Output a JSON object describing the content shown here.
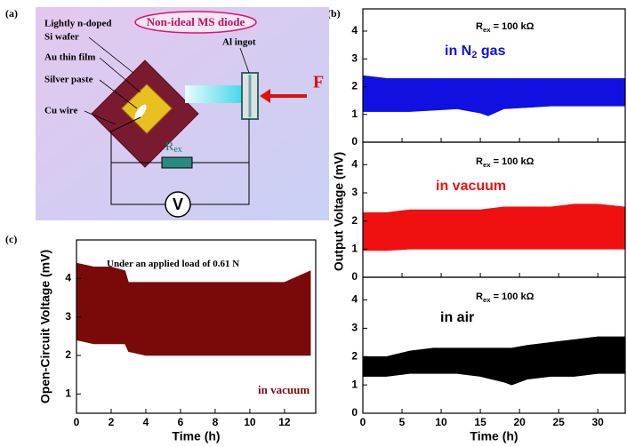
{
  "panel_labels": [
    "(a)",
    "(b)",
    "(c)"
  ],
  "diagram": {
    "title": "Non-ideal MS diode",
    "labels": [
      "Lightly n-doped",
      "Si wafer",
      "Au thin film",
      "Silver paste",
      "Cu wire",
      "Al ingot"
    ],
    "force": "F",
    "resistor": [
      "R",
      "ex"
    ],
    "meter": "V"
  },
  "chart_data": [
    {
      "type": "band",
      "xlim": [
        0,
        33.5
      ],
      "xticks": [
        0,
        5,
        10,
        15,
        20,
        25,
        30
      ],
      "xtick_labels": false,
      "ylim": [
        0,
        4.8
      ],
      "yticks": [
        0,
        1,
        2,
        3,
        4
      ],
      "note": [
        "R",
        "ex",
        " = 100 kΩ"
      ],
      "label": [
        "in N",
        "2",
        " gas"
      ],
      "series": [
        {
          "color": "#1010e0",
          "x": [
            0,
            3,
            6,
            9,
            12,
            15,
            16,
            18,
            21,
            24,
            27,
            30,
            33.5
          ],
          "low": [
            1.1,
            1.1,
            1.1,
            1.15,
            1.2,
            1.05,
            0.95,
            1.2,
            1.25,
            1.3,
            1.3,
            1.3,
            1.3
          ],
          "high": [
            2.4,
            2.3,
            2.3,
            2.3,
            2.3,
            2.3,
            2.3,
            2.3,
            2.3,
            2.3,
            2.3,
            2.3,
            2.3
          ]
        }
      ]
    },
    {
      "type": "band",
      "xlim": [
        0,
        33.5
      ],
      "xticks": [
        0,
        5,
        10,
        15,
        20,
        25,
        30
      ],
      "xtick_labels": false,
      "ylim": [
        0,
        4.8
      ],
      "yticks": [
        0,
        1,
        2,
        3,
        4
      ],
      "ylabel": "Output Voltage (mV)",
      "note": [
        "R",
        "ex",
        " = 100 kΩ"
      ],
      "label": [
        "in vacuum"
      ],
      "series": [
        {
          "color": "#f01010",
          "x": [
            0,
            3,
            6,
            9,
            12,
            15,
            18,
            21,
            24,
            27,
            30,
            33.5
          ],
          "low": [
            0.95,
            0.95,
            1.0,
            1.0,
            1.0,
            1.0,
            1.0,
            1.0,
            1.0,
            1.0,
            1.0,
            1.0
          ],
          "high": [
            2.3,
            2.3,
            2.4,
            2.4,
            2.4,
            2.4,
            2.5,
            2.5,
            2.5,
            2.6,
            2.6,
            2.5
          ]
        }
      ]
    },
    {
      "type": "band",
      "xlim": [
        0,
        33.5
      ],
      "xticks": [
        0,
        5,
        10,
        15,
        20,
        25,
        30
      ],
      "xtick_labels": true,
      "ylim": [
        0,
        4.8
      ],
      "yticks": [
        0,
        1,
        2,
        3,
        4
      ],
      "xlabel": "Time (h)",
      "note": [
        "R",
        "ex",
        " = 100 kΩ"
      ],
      "label": [
        "in air"
      ],
      "series": [
        {
          "color": "#000000",
          "x": [
            0,
            3,
            6,
            9,
            12,
            15,
            18,
            19,
            21,
            24,
            27,
            30,
            33.5
          ],
          "low": [
            1.3,
            1.3,
            1.4,
            1.4,
            1.4,
            1.3,
            1.1,
            1.0,
            1.2,
            1.3,
            1.3,
            1.4,
            1.4
          ],
          "high": [
            2.0,
            2.0,
            2.2,
            2.3,
            2.3,
            2.3,
            2.3,
            2.3,
            2.4,
            2.5,
            2.6,
            2.7,
            2.7
          ]
        }
      ]
    },
    {
      "type": "band",
      "xlim": [
        0,
        13.8
      ],
      "xticks": [
        0,
        2,
        4,
        6,
        8,
        10,
        12
      ],
      "xtick_labels": true,
      "ylim": [
        0.5,
        5
      ],
      "yticks": [
        1,
        2,
        3,
        4
      ],
      "xlabel": "Time (h)",
      "ylabel": "Open-Circuit Voltage (mV)",
      "note": [
        "Under an applied load of 0.61 N"
      ],
      "label": [
        "in vacuum"
      ],
      "series": [
        {
          "color": "#7a0a0a",
          "x": [
            0,
            1,
            2,
            2.8,
            3,
            4,
            6,
            8,
            10,
            12,
            13.5
          ],
          "low": [
            2.4,
            2.3,
            2.3,
            2.3,
            2.1,
            2.0,
            2.0,
            2.0,
            2.0,
            2.0,
            2.0
          ],
          "high": [
            4.4,
            4.3,
            4.3,
            4.2,
            3.9,
            3.9,
            3.9,
            3.9,
            3.9,
            3.9,
            4.2
          ]
        }
      ]
    }
  ]
}
